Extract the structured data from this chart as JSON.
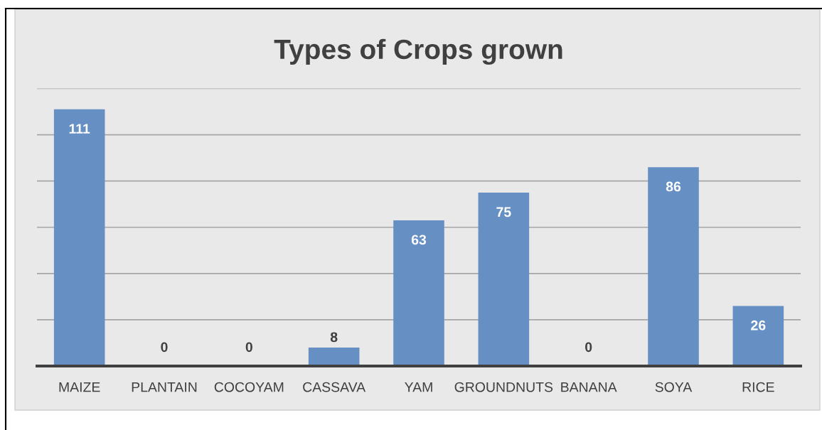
{
  "chart_data": {
    "type": "bar",
    "title": "Types of Crops grown",
    "categories": [
      "MAIZE",
      "PLANTAIN",
      "COCOYAM",
      "CASSAVA",
      "YAM",
      "GROUNDNUTS",
      "BANANA",
      "SOYA",
      "RICE"
    ],
    "values": [
      111,
      0,
      0,
      8,
      63,
      75,
      0,
      86,
      26
    ],
    "color": "#6690c4",
    "data_labels": true,
    "ylim": [
      0,
      120
    ],
    "yticks": [
      {
        "value": 20,
        "label": null
      },
      {
        "value": 40,
        "label": null
      },
      {
        "value": 60,
        "label": null
      },
      {
        "value": 80,
        "label": null
      },
      {
        "value": 100,
        "label": null
      },
      {
        "value": 120,
        "label": null
      }
    ],
    "grid": "y",
    "tick_labels": "x"
  }
}
